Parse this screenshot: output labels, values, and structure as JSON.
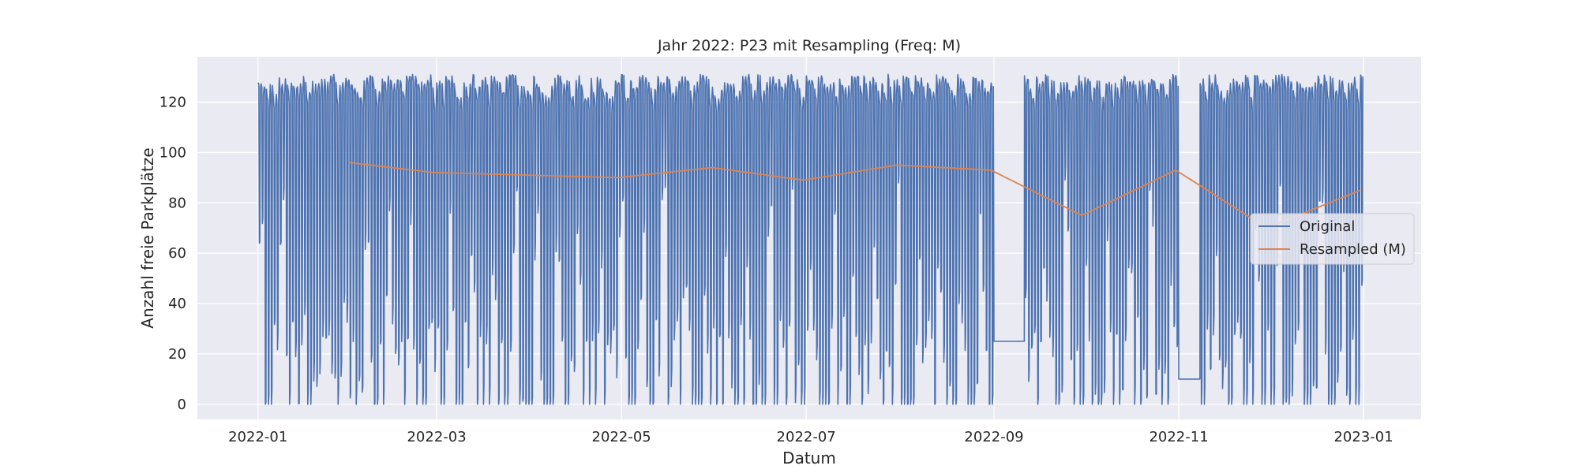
{
  "chart_data": {
    "type": "line",
    "title": "Jahr 2022: P23 mit Resampling (Freq: M)",
    "xlabel": "Datum",
    "ylabel": "Anzahl freie Parkplätze",
    "x_range": [
      "2021-12-12",
      "2023-01-20"
    ],
    "ylim": [
      -6,
      138
    ],
    "x_ticks": [
      "2022-01",
      "2022-03",
      "2022-05",
      "2022-07",
      "2022-09",
      "2022-11",
      "2023-01"
    ],
    "y_ticks": [
      0,
      20,
      40,
      60,
      80,
      100,
      120
    ],
    "grid": true,
    "legend_position": "center-right",
    "background_color": "#EAEAF2",
    "series": [
      {
        "name": "Original",
        "color": "#4C72B0",
        "kind": "daily-oscillation",
        "start": "2022-01-01",
        "end": "2022-12-31",
        "typical_high": 131,
        "typical_low": 0,
        "gaps": [
          {
            "from": "2022-09-01",
            "to": "2022-09-10",
            "value": 25
          },
          {
            "from": "2022-11-01",
            "to": "2022-11-07",
            "value": 10
          }
        ]
      },
      {
        "name": "Resampled (M)",
        "color": "#DD8452",
        "x": [
          "2022-01-31",
          "2022-02-28",
          "2022-03-31",
          "2022-04-30",
          "2022-05-31",
          "2022-06-30",
          "2022-07-31",
          "2022-08-31",
          "2022-09-30",
          "2022-10-31",
          "2022-11-30",
          "2022-12-31"
        ],
        "values": [
          96,
          92,
          91,
          90,
          94,
          89,
          95,
          93,
          75,
          93,
          70,
          85
        ]
      }
    ]
  }
}
